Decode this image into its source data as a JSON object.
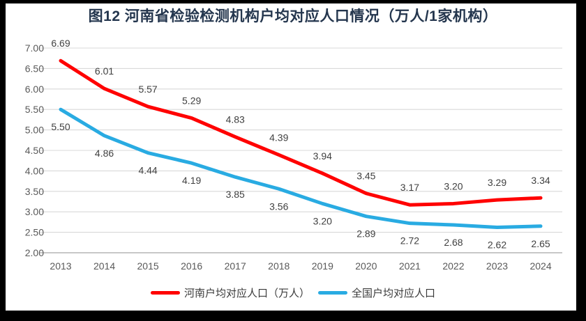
{
  "figure": {
    "background_color": "#FFFFFF",
    "frame_color": "#000000"
  },
  "chart_data": {
    "type": "line",
    "title": "图12  河南省检验检测机构户均对应人口情况（万人/1家机构）",
    "categories": [
      "2013",
      "2014",
      "2015",
      "2016",
      "2017",
      "2018",
      "2019",
      "2020",
      "2021",
      "2022",
      "2023",
      "2024"
    ],
    "series": [
      {
        "name": "河南户均对应人口（万人）",
        "color": "#FF0000",
        "label_position": "above",
        "values": [
          6.69,
          6.01,
          5.57,
          5.29,
          4.83,
          4.39,
          3.94,
          3.45,
          3.17,
          3.2,
          3.29,
          3.34
        ]
      },
      {
        "name": "全国户均对应人口",
        "color": "#29ABE2",
        "label_position": "below",
        "values": [
          5.5,
          4.86,
          4.44,
          4.19,
          3.85,
          3.56,
          3.2,
          2.89,
          2.72,
          2.68,
          2.62,
          2.65
        ]
      }
    ],
    "y_axis": {
      "min": 2.0,
      "max": 7.0,
      "step": 0.5,
      "decimals": 2
    },
    "x_axis_label": "",
    "grid": true,
    "legend_position": "bottom",
    "colors": {
      "grid": "#D9D9D9",
      "axis_line": "#BFBFBF",
      "tick_label": "#595959",
      "data_label": "#404040",
      "title": "#24364E",
      "legend_text": "#3A3A3A"
    }
  }
}
